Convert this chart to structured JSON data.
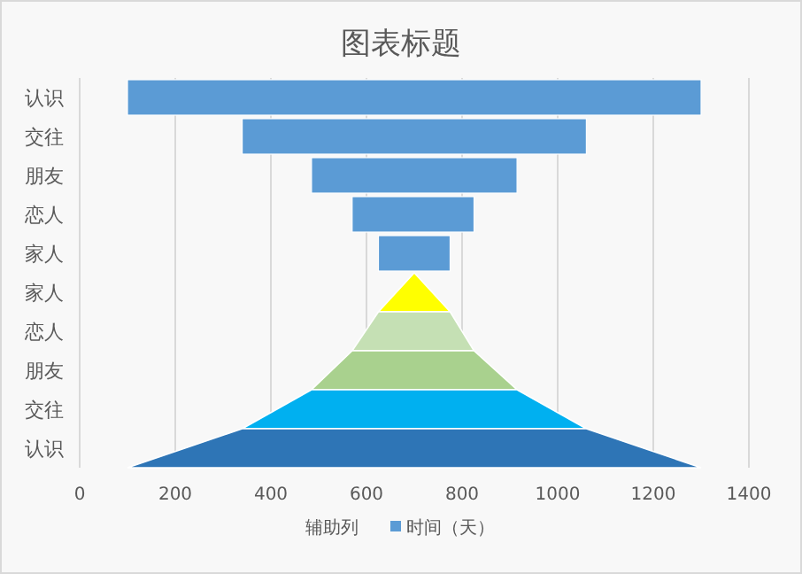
{
  "chart_data": {
    "type": "bar",
    "orientation": "horizontal",
    "title": "图表标题",
    "categories": [
      "认识",
      "交往",
      "朋友",
      "恋人",
      "家人",
      "家人",
      "恋人",
      "朋友",
      "交往",
      "认识"
    ],
    "series": [
      {
        "name": "时间（天）",
        "color": "#5b9bd5",
        "colors": [
          "#5b9bd5",
          "#5b9bd5",
          "#5b9bd5",
          "#5b9bd5",
          "#5b9bd5",
          "#ffff00",
          "#c5e0b4",
          "#a9d18e",
          "#00b0f0",
          "#2e75b6"
        ],
        "base": [
          100,
          340,
          485,
          570,
          625,
          null,
          null,
          null,
          null,
          null
        ],
        "values": [
          1200,
          720,
          430,
          255,
          150,
          null,
          null,
          null,
          null,
          null
        ]
      }
    ],
    "annotations": [
      "辅助列"
    ],
    "xlim": [
      0,
      1400
    ],
    "xticks": [
      0,
      200,
      400,
      600,
      800,
      1000,
      1200,
      1400
    ],
    "grid": "x",
    "legend": "bottom"
  }
}
